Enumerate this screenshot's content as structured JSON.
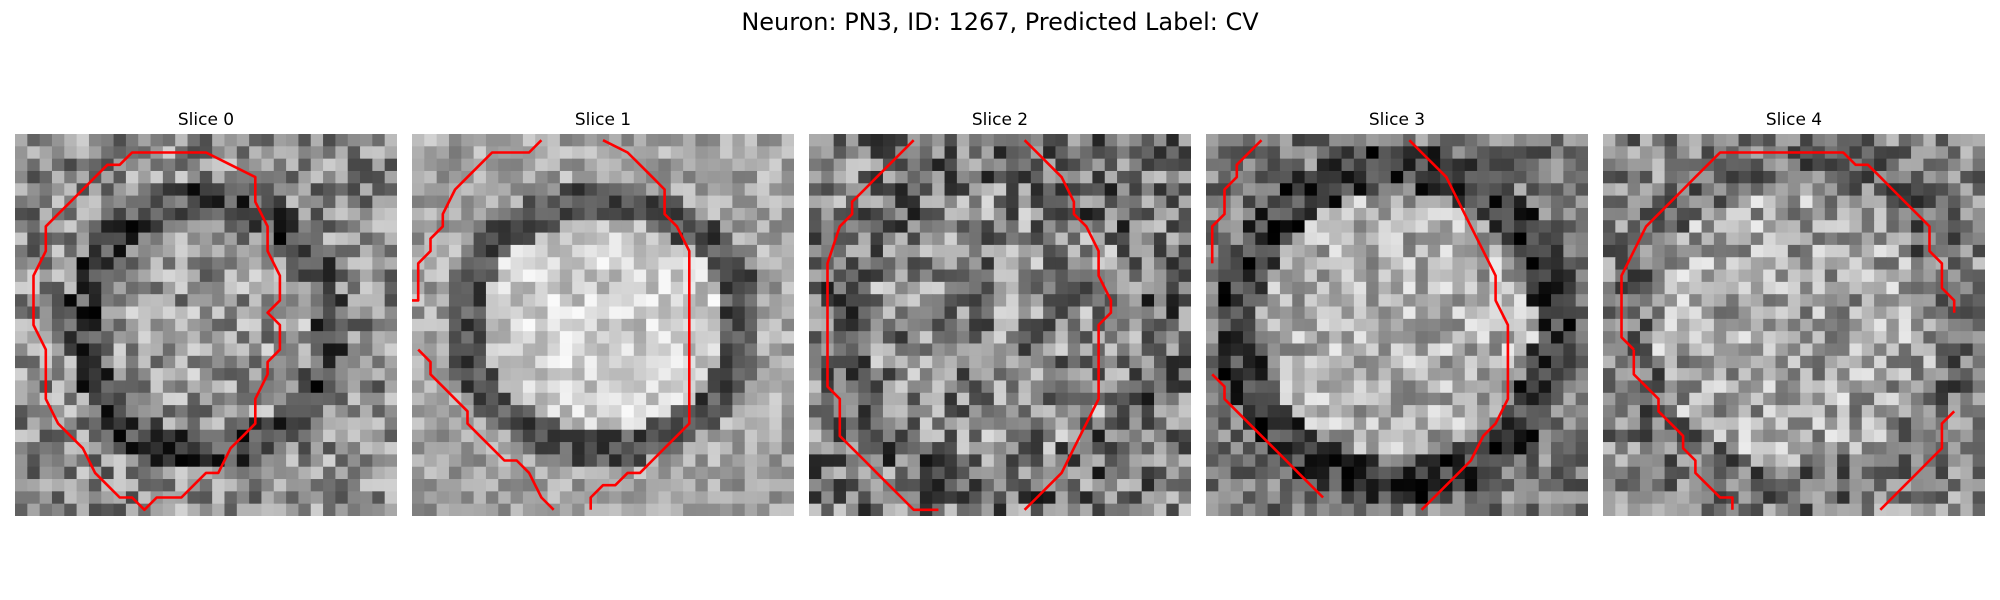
{
  "figure": {
    "title": "Neuron: PN3, ID: 1267, Predicted Label: CV"
  },
  "panels": [
    {
      "title": "Slice 0"
    },
    {
      "title": "Slice 1"
    },
    {
      "title": "Slice 2"
    },
    {
      "title": "Slice 3"
    },
    {
      "title": "Slice 4"
    }
  ],
  "colors": {
    "contour": "#ff0000",
    "colormap": "gray"
  }
}
